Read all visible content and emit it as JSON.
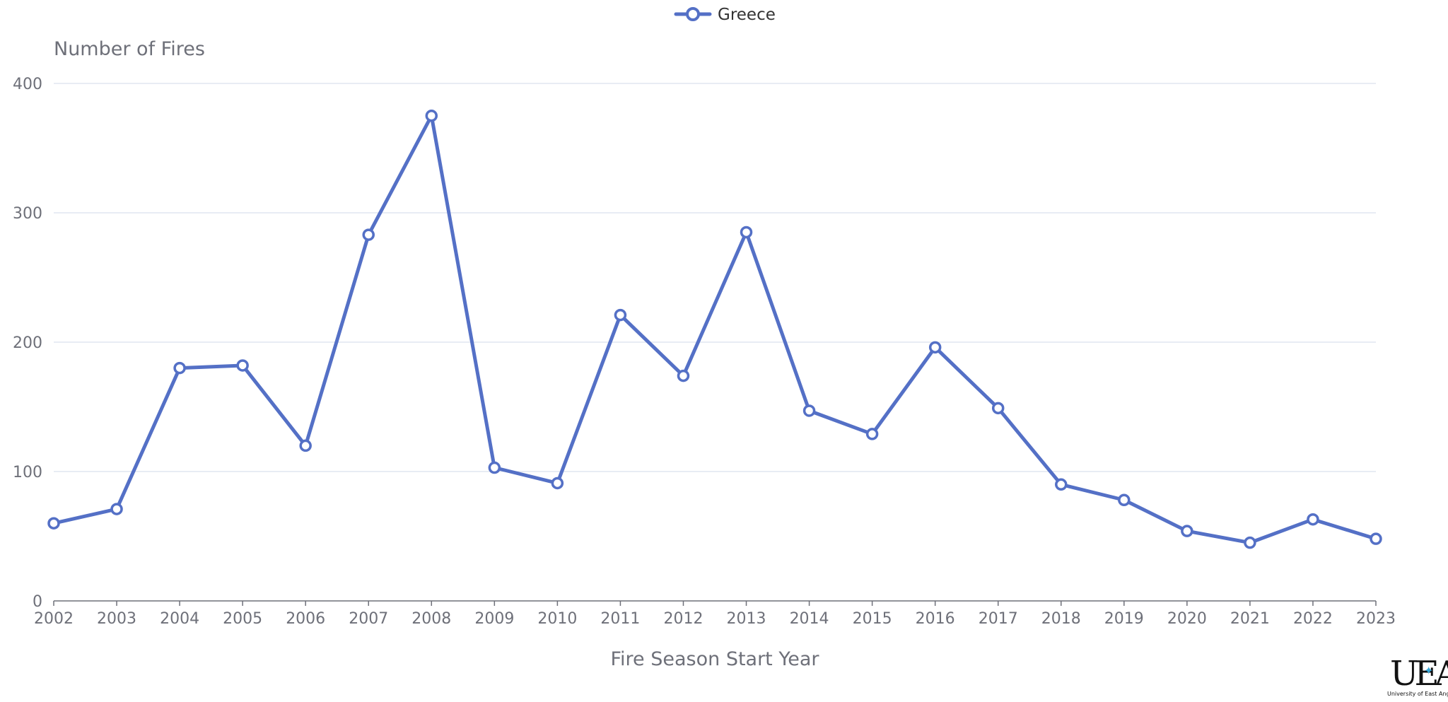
{
  "chart_data": {
    "type": "line",
    "title": "",
    "xlabel": "Fire Season Start Year",
    "ylabel": "Number of Fires",
    "x": [
      "2002",
      "2003",
      "2004",
      "2005",
      "2006",
      "2007",
      "2008",
      "2009",
      "2010",
      "2011",
      "2012",
      "2013",
      "2014",
      "2015",
      "2016",
      "2017",
      "2018",
      "2019",
      "2020",
      "2021",
      "2022",
      "2023"
    ],
    "series": [
      {
        "name": "Greece",
        "color": "#5470c6",
        "values": [
          60,
          71,
          180,
          182,
          120,
          283,
          375,
          103,
          91,
          221,
          174,
          285,
          147,
          129,
          196,
          149,
          90,
          78,
          54,
          45,
          63,
          48
        ]
      }
    ],
    "ylim": [
      0,
      400
    ],
    "yticks": [
      0,
      100,
      200,
      300,
      400
    ],
    "grid": true,
    "legend_position": "top-center"
  },
  "logo": {
    "mark": "UEA",
    "subtitle": "University of East Anglia"
  }
}
